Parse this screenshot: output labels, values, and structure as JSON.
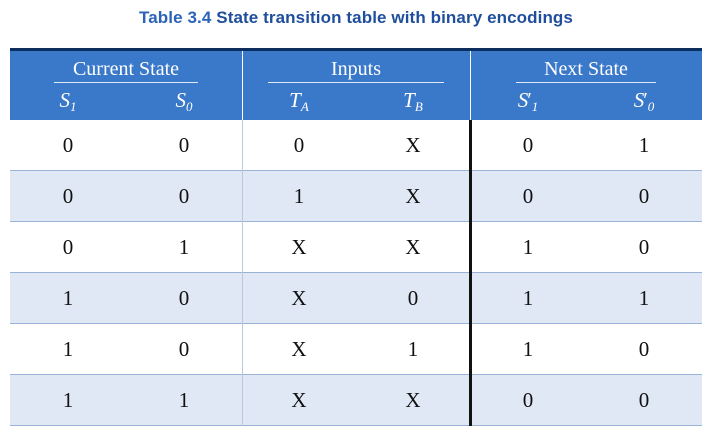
{
  "caption": {
    "label": "Table 3.4",
    "title": "State transition table with binary encodings"
  },
  "groups": {
    "current": "Current State",
    "inputs": "Inputs",
    "next": "Next State"
  },
  "columns": {
    "s1": {
      "base": "S",
      "sub": "1"
    },
    "s0": {
      "base": "S",
      "sub": "0"
    },
    "ta": {
      "base": "T",
      "sub": "A"
    },
    "tb": {
      "base": "T",
      "sub": "B"
    },
    "ns1": {
      "base": "S",
      "prime": "′",
      "sub": "1"
    },
    "ns0": {
      "base": "S",
      "prime": "′",
      "sub": "0"
    }
  },
  "rows": [
    [
      "0",
      "0",
      "0",
      "X",
      "0",
      "1"
    ],
    [
      "0",
      "0",
      "1",
      "X",
      "0",
      "0"
    ],
    [
      "0",
      "1",
      "X",
      "X",
      "1",
      "0"
    ],
    [
      "1",
      "0",
      "X",
      "0",
      "1",
      "1"
    ],
    [
      "1",
      "0",
      "X",
      "1",
      "1",
      "0"
    ],
    [
      "1",
      "1",
      "X",
      "X",
      "0",
      "0"
    ]
  ],
  "colors": {
    "header_bg": "#3a78c9",
    "header_rule": "#0b2e5f",
    "stripe": "#dfe8f4",
    "caption": "#1f4e9c"
  }
}
